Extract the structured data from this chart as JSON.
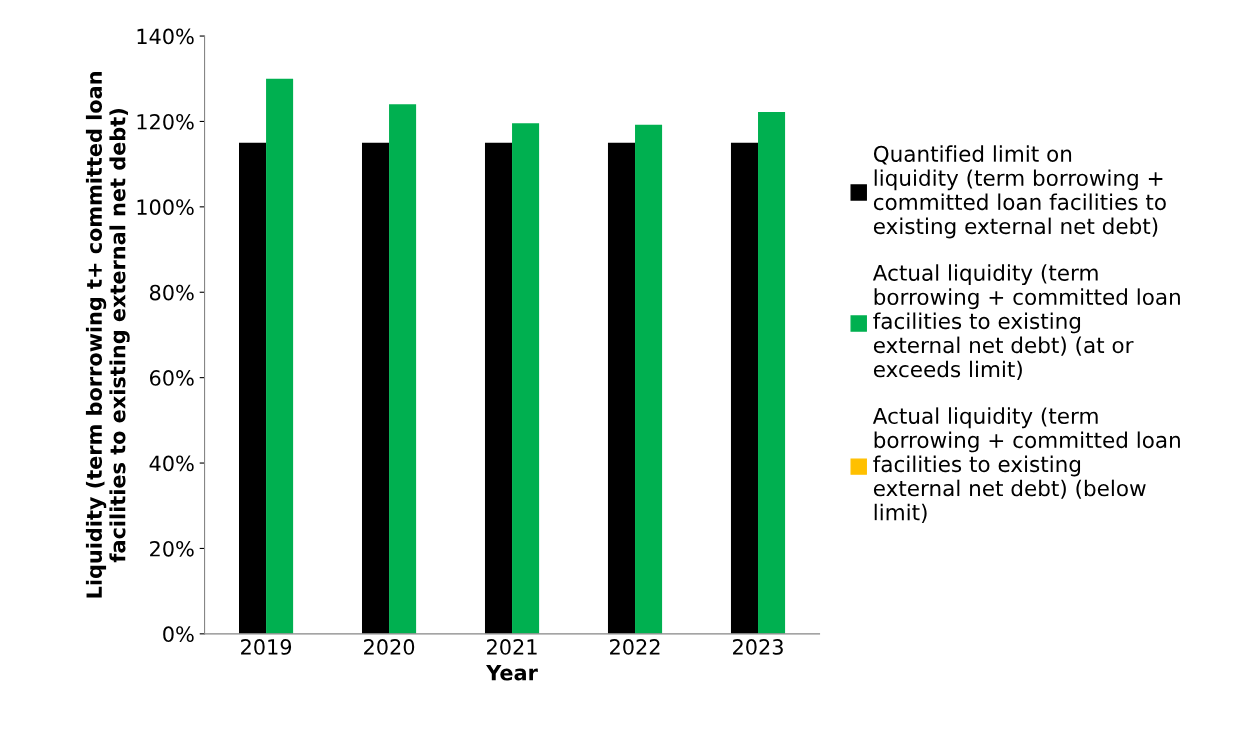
{
  "chart_data": {
    "type": "bar",
    "xlabel": "Year",
    "ylabel": "Liquidity (term borrowing t+ committed loan facilities to existing external net debt)",
    "categories": [
      "2019",
      "2020",
      "2021",
      "2022",
      "2023"
    ],
    "series": [
      {
        "name": "Quantified limit on liquidity (term borrowing + committed loan facilities to existing external net debt)",
        "color": "#000000",
        "values": [
          115,
          115,
          115,
          115,
          115
        ]
      },
      {
        "name": "Actual liquidity (term borrowing + committed loan facilities to existing external net debt) (at or exceeds limit)",
        "color": "#00b050",
        "values": [
          130,
          124,
          119.6,
          119.2,
          122.2
        ]
      },
      {
        "name": "Actual liquidity (term borrowing + committed loan facilities to existing external net debt) (below limit)",
        "color": "#ffc000",
        "values": [
          null,
          null,
          null,
          null,
          null
        ]
      }
    ],
    "ylim": [
      0,
      140
    ],
    "yticks": [
      {
        "value": 0,
        "label": "0%"
      },
      {
        "value": 20,
        "label": "20%"
      },
      {
        "value": 40,
        "label": "40%"
      },
      {
        "value": 60,
        "label": "60%"
      },
      {
        "value": 80,
        "label": "80%"
      },
      {
        "value": 100,
        "label": "100%"
      },
      {
        "value": 120,
        "label": "120%"
      },
      {
        "value": 140,
        "label": "140%"
      }
    ],
    "grid": false,
    "legend": "right"
  }
}
